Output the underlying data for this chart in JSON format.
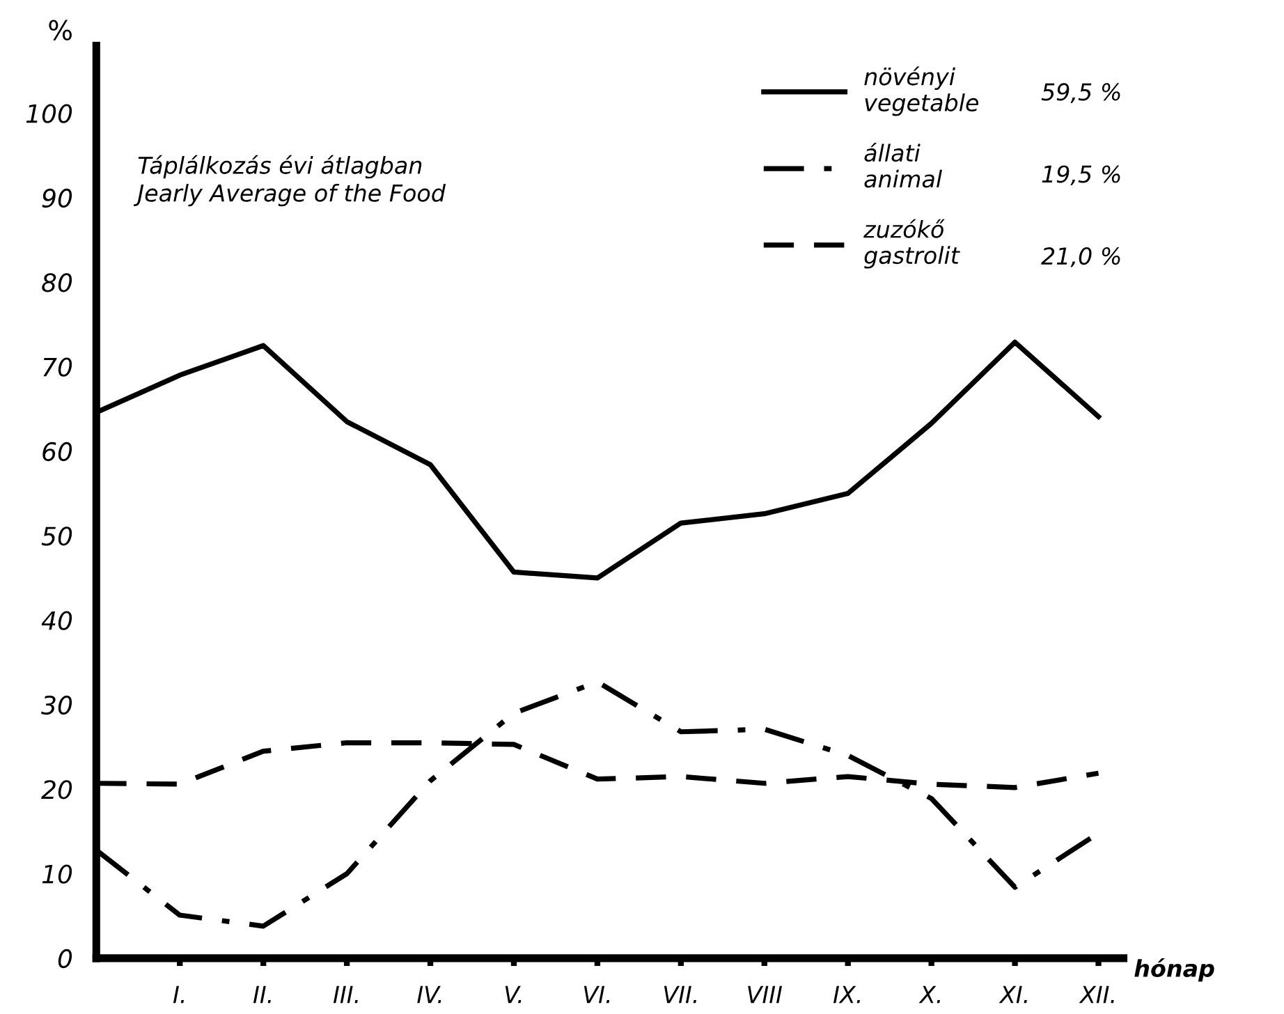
{
  "chart_data": {
    "type": "line",
    "title": "Táplálkozás évi átlagban\nJearly Average of the Food",
    "xlabel": "hónap",
    "ylabel": "%",
    "categories": [
      null,
      "I.",
      "II.",
      "III.",
      "IV.",
      "V.",
      "VI.",
      "VII.",
      "VIII",
      "IX.",
      "X.",
      "XI.",
      "XII."
    ],
    "series": [
      {
        "name": "növényi\nvegetable",
        "color": "#000000",
        "line_style": "solid",
        "values": [
          64.6,
          69,
          72.5,
          63.5,
          58.4,
          45.7,
          45,
          51.5,
          52.6,
          55,
          63.3,
          72.9,
          64.1
        ]
      },
      {
        "name": "állati\nanimal",
        "color": "#000000",
        "line_style": "dashdot",
        "values": [
          12.8,
          5.1,
          3.8,
          10,
          21,
          29,
          32.7,
          26.8,
          27.1,
          24,
          18.9,
          8.4,
          14.8
        ]
      },
      {
        "name": "zuzókő\ngastrolit",
        "color": "#000000",
        "line_style": "dashed",
        "values": [
          20.7,
          20.6,
          24.5,
          25.5,
          25.5,
          25.3,
          21.2,
          21.5,
          20.7,
          21.5,
          20.6,
          20.2,
          21.9
        ]
      }
    ],
    "annotations": [
      "59,5 %",
      "19,5 %",
      "21,0 %"
    ],
    "ylim": [
      0,
      108
    ],
    "yticks": [
      0,
      10,
      20,
      30,
      40,
      50,
      60,
      70,
      80,
      90,
      100
    ],
    "grid": false,
    "legend": "top right",
    "marker": "none"
  }
}
